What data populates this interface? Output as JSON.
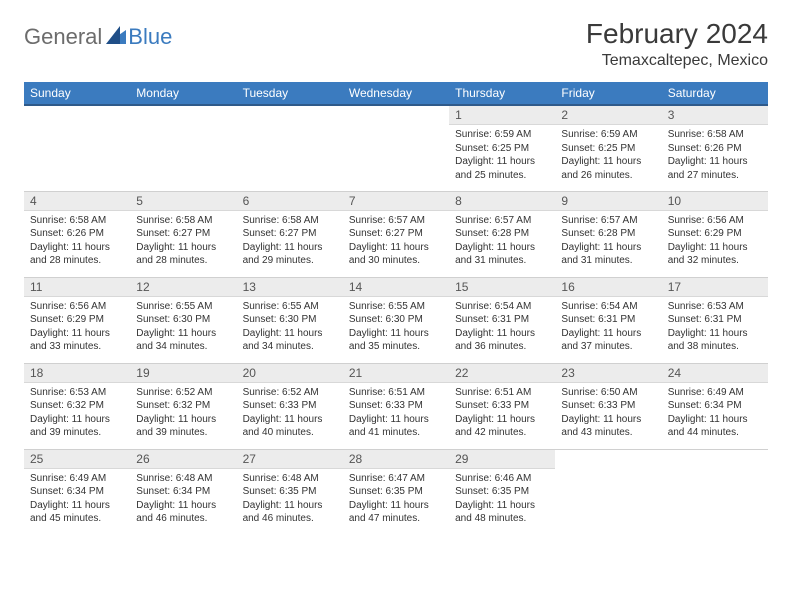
{
  "logo": {
    "general": "General",
    "blue": "Blue"
  },
  "title": "February 2024",
  "location": "Temaxcaltepec, Mexico",
  "colors": {
    "header_bg": "#3b7bbf",
    "header_text": "#ffffff",
    "daynum_bg": "#ececec",
    "body_text": "#333333",
    "border": "#d0d0d0",
    "page_bg": "#ffffff"
  },
  "typography": {
    "title_fontsize": 28,
    "location_fontsize": 16,
    "weekday_fontsize": 12,
    "daynum_fontsize": 12,
    "cell_fontsize": 10
  },
  "layout": {
    "columns": 7,
    "rows": 5,
    "start_weekday": "Sunday",
    "first_day_column_index": 4
  },
  "weekdays": [
    "Sunday",
    "Monday",
    "Tuesday",
    "Wednesday",
    "Thursday",
    "Friday",
    "Saturday"
  ],
  "days": [
    {
      "n": "1",
      "sunrise": "Sunrise: 6:59 AM",
      "sunset": "Sunset: 6:25 PM",
      "daylight": "Daylight: 11 hours and 25 minutes."
    },
    {
      "n": "2",
      "sunrise": "Sunrise: 6:59 AM",
      "sunset": "Sunset: 6:25 PM",
      "daylight": "Daylight: 11 hours and 26 minutes."
    },
    {
      "n": "3",
      "sunrise": "Sunrise: 6:58 AM",
      "sunset": "Sunset: 6:26 PM",
      "daylight": "Daylight: 11 hours and 27 minutes."
    },
    {
      "n": "4",
      "sunrise": "Sunrise: 6:58 AM",
      "sunset": "Sunset: 6:26 PM",
      "daylight": "Daylight: 11 hours and 28 minutes."
    },
    {
      "n": "5",
      "sunrise": "Sunrise: 6:58 AM",
      "sunset": "Sunset: 6:27 PM",
      "daylight": "Daylight: 11 hours and 28 minutes."
    },
    {
      "n": "6",
      "sunrise": "Sunrise: 6:58 AM",
      "sunset": "Sunset: 6:27 PM",
      "daylight": "Daylight: 11 hours and 29 minutes."
    },
    {
      "n": "7",
      "sunrise": "Sunrise: 6:57 AM",
      "sunset": "Sunset: 6:27 PM",
      "daylight": "Daylight: 11 hours and 30 minutes."
    },
    {
      "n": "8",
      "sunrise": "Sunrise: 6:57 AM",
      "sunset": "Sunset: 6:28 PM",
      "daylight": "Daylight: 11 hours and 31 minutes."
    },
    {
      "n": "9",
      "sunrise": "Sunrise: 6:57 AM",
      "sunset": "Sunset: 6:28 PM",
      "daylight": "Daylight: 11 hours and 31 minutes."
    },
    {
      "n": "10",
      "sunrise": "Sunrise: 6:56 AM",
      "sunset": "Sunset: 6:29 PM",
      "daylight": "Daylight: 11 hours and 32 minutes."
    },
    {
      "n": "11",
      "sunrise": "Sunrise: 6:56 AM",
      "sunset": "Sunset: 6:29 PM",
      "daylight": "Daylight: 11 hours and 33 minutes."
    },
    {
      "n": "12",
      "sunrise": "Sunrise: 6:55 AM",
      "sunset": "Sunset: 6:30 PM",
      "daylight": "Daylight: 11 hours and 34 minutes."
    },
    {
      "n": "13",
      "sunrise": "Sunrise: 6:55 AM",
      "sunset": "Sunset: 6:30 PM",
      "daylight": "Daylight: 11 hours and 34 minutes."
    },
    {
      "n": "14",
      "sunrise": "Sunrise: 6:55 AM",
      "sunset": "Sunset: 6:30 PM",
      "daylight": "Daylight: 11 hours and 35 minutes."
    },
    {
      "n": "15",
      "sunrise": "Sunrise: 6:54 AM",
      "sunset": "Sunset: 6:31 PM",
      "daylight": "Daylight: 11 hours and 36 minutes."
    },
    {
      "n": "16",
      "sunrise": "Sunrise: 6:54 AM",
      "sunset": "Sunset: 6:31 PM",
      "daylight": "Daylight: 11 hours and 37 minutes."
    },
    {
      "n": "17",
      "sunrise": "Sunrise: 6:53 AM",
      "sunset": "Sunset: 6:31 PM",
      "daylight": "Daylight: 11 hours and 38 minutes."
    },
    {
      "n": "18",
      "sunrise": "Sunrise: 6:53 AM",
      "sunset": "Sunset: 6:32 PM",
      "daylight": "Daylight: 11 hours and 39 minutes."
    },
    {
      "n": "19",
      "sunrise": "Sunrise: 6:52 AM",
      "sunset": "Sunset: 6:32 PM",
      "daylight": "Daylight: 11 hours and 39 minutes."
    },
    {
      "n": "20",
      "sunrise": "Sunrise: 6:52 AM",
      "sunset": "Sunset: 6:33 PM",
      "daylight": "Daylight: 11 hours and 40 minutes."
    },
    {
      "n": "21",
      "sunrise": "Sunrise: 6:51 AM",
      "sunset": "Sunset: 6:33 PM",
      "daylight": "Daylight: 11 hours and 41 minutes."
    },
    {
      "n": "22",
      "sunrise": "Sunrise: 6:51 AM",
      "sunset": "Sunset: 6:33 PM",
      "daylight": "Daylight: 11 hours and 42 minutes."
    },
    {
      "n": "23",
      "sunrise": "Sunrise: 6:50 AM",
      "sunset": "Sunset: 6:33 PM",
      "daylight": "Daylight: 11 hours and 43 minutes."
    },
    {
      "n": "24",
      "sunrise": "Sunrise: 6:49 AM",
      "sunset": "Sunset: 6:34 PM",
      "daylight": "Daylight: 11 hours and 44 minutes."
    },
    {
      "n": "25",
      "sunrise": "Sunrise: 6:49 AM",
      "sunset": "Sunset: 6:34 PM",
      "daylight": "Daylight: 11 hours and 45 minutes."
    },
    {
      "n": "26",
      "sunrise": "Sunrise: 6:48 AM",
      "sunset": "Sunset: 6:34 PM",
      "daylight": "Daylight: 11 hours and 46 minutes."
    },
    {
      "n": "27",
      "sunrise": "Sunrise: 6:48 AM",
      "sunset": "Sunset: 6:35 PM",
      "daylight": "Daylight: 11 hours and 46 minutes."
    },
    {
      "n": "28",
      "sunrise": "Sunrise: 6:47 AM",
      "sunset": "Sunset: 6:35 PM",
      "daylight": "Daylight: 11 hours and 47 minutes."
    },
    {
      "n": "29",
      "sunrise": "Sunrise: 6:46 AM",
      "sunset": "Sunset: 6:35 PM",
      "daylight": "Daylight: 11 hours and 48 minutes."
    }
  ]
}
